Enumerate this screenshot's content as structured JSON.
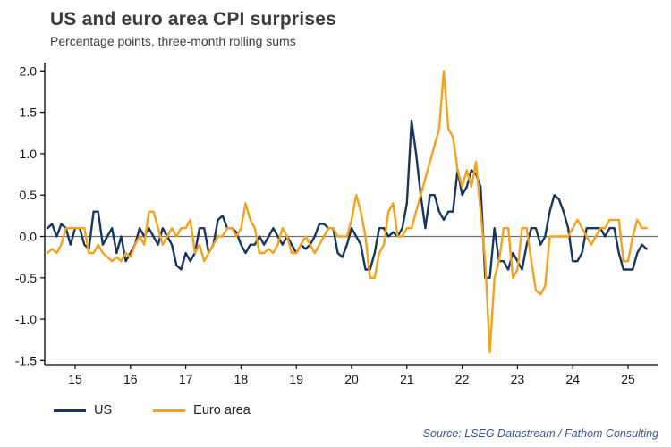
{
  "header": {
    "title": "US and euro area CPI surprises",
    "subtitle": "Percentage points, three-month rolling sums"
  },
  "source": "Source: LSEG Datastream / Fathom Consulting",
  "colors": {
    "us_line": "#17375e",
    "euro_line": "#f7a11a",
    "zero_line": "#6f6f6f",
    "axis": "#000000",
    "source_text": "#35559c"
  },
  "chart_data": {
    "type": "line",
    "title": "US and euro area CPI surprises",
    "subtitle": "Percentage points, three-month rolling sums",
    "xlabel": "",
    "ylabel": "Percentage points",
    "xlim": [
      2014.45,
      2025.55
    ],
    "ylim": [
      -1.55,
      2.1
    ],
    "yticks": [
      2.0,
      1.5,
      1.0,
      0.5,
      0.0,
      -0.5,
      -1.0,
      -1.5
    ],
    "xticks": [
      2015,
      2016,
      2017,
      2018,
      2019,
      2020,
      2021,
      2022,
      2023,
      2024,
      2025
    ],
    "xtick_labels": [
      "15",
      "16",
      "17",
      "18",
      "19",
      "20",
      "21",
      "22",
      "23",
      "24",
      "25"
    ],
    "grid": false,
    "legend_position": "bottom-left",
    "x_start": 2014.5,
    "x_step": 0.0833333,
    "series": [
      {
        "name": "US",
        "color": "#17375e",
        "values": [
          0.1,
          0.15,
          0.0,
          0.15,
          0.1,
          -0.1,
          0.1,
          0.1,
          -0.1,
          -0.15,
          0.3,
          0.3,
          -0.1,
          0.0,
          0.1,
          -0.2,
          0.0,
          -0.3,
          -0.2,
          -0.1,
          0.1,
          0.0,
          0.1,
          0.0,
          -0.1,
          0.1,
          0.0,
          -0.1,
          -0.35,
          -0.4,
          -0.2,
          -0.3,
          -0.2,
          0.1,
          0.1,
          -0.2,
          -0.1,
          0.2,
          0.25,
          0.1,
          0.1,
          0.05,
          -0.1,
          -0.2,
          -0.1,
          -0.1,
          0.0,
          -0.1,
          0.0,
          0.1,
          0.0,
          -0.1,
          0.0,
          -0.1,
          -0.2,
          -0.1,
          -0.15,
          -0.1,
          0.0,
          0.15,
          0.15,
          0.1,
          0.1,
          -0.2,
          -0.25,
          -0.1,
          0.1,
          0.0,
          -0.1,
          -0.4,
          -0.4,
          -0.2,
          0.1,
          0.1,
          0.0,
          0.05,
          0.0,
          0.1,
          0.4,
          1.4,
          1.0,
          0.5,
          0.1,
          0.5,
          0.5,
          0.3,
          0.2,
          0.3,
          0.3,
          0.8,
          0.5,
          0.6,
          0.8,
          0.75,
          0.6,
          -0.5,
          -0.5,
          0.1,
          -0.3,
          -0.3,
          -0.4,
          -0.2,
          -0.3,
          -0.4,
          -0.1,
          0.1,
          0.1,
          -0.1,
          0.0,
          0.3,
          0.5,
          0.45,
          0.3,
          0.1,
          -0.3,
          -0.3,
          -0.2,
          0.1,
          0.1,
          0.1,
          0.1,
          0.0,
          0.1,
          0.1,
          -0.2,
          -0.4,
          -0.4,
          -0.4,
          -0.2,
          -0.1,
          -0.15
        ]
      },
      {
        "name": "Euro area",
        "color": "#f7a11a",
        "values": [
          -0.2,
          -0.15,
          -0.2,
          -0.1,
          0.1,
          0.1,
          0.1,
          0.1,
          0.1,
          -0.2,
          -0.2,
          -0.1,
          -0.2,
          -0.25,
          -0.3,
          -0.25,
          -0.3,
          -0.2,
          -0.25,
          -0.1,
          0.0,
          -0.1,
          0.3,
          0.3,
          0.1,
          -0.1,
          0.0,
          0.1,
          0.0,
          0.1,
          0.1,
          0.2,
          -0.2,
          -0.1,
          -0.3,
          -0.2,
          -0.1,
          0.0,
          0.0,
          0.1,
          0.1,
          0.0,
          0.1,
          0.4,
          0.2,
          0.1,
          -0.2,
          -0.2,
          -0.15,
          -0.2,
          -0.1,
          0.1,
          0.0,
          -0.2,
          -0.2,
          -0.1,
          0.0,
          -0.1,
          -0.2,
          -0.1,
          0.0,
          0.1,
          0.1,
          0.0,
          0.0,
          0.0,
          0.2,
          0.5,
          0.3,
          0.0,
          -0.5,
          -0.5,
          -0.2,
          -0.1,
          0.3,
          0.4,
          0.0,
          0.0,
          0.1,
          0.1,
          0.3,
          0.5,
          0.7,
          0.9,
          1.1,
          1.3,
          2.0,
          1.3,
          1.2,
          0.8,
          0.6,
          0.8,
          0.6,
          0.9,
          0.3,
          -0.3,
          -1.4,
          -0.5,
          -0.3,
          0.1,
          0.1,
          -0.5,
          -0.4,
          0.1,
          0.1,
          -0.3,
          -0.65,
          -0.7,
          -0.6,
          0.0,
          0.0,
          0.0,
          0.0,
          0.0,
          0.1,
          0.2,
          0.1,
          0.0,
          -0.1,
          0.0,
          0.1,
          0.1,
          0.2,
          0.2,
          0.2,
          -0.3,
          -0.3,
          0.0,
          0.2,
          0.1,
          0.1
        ]
      }
    ]
  }
}
